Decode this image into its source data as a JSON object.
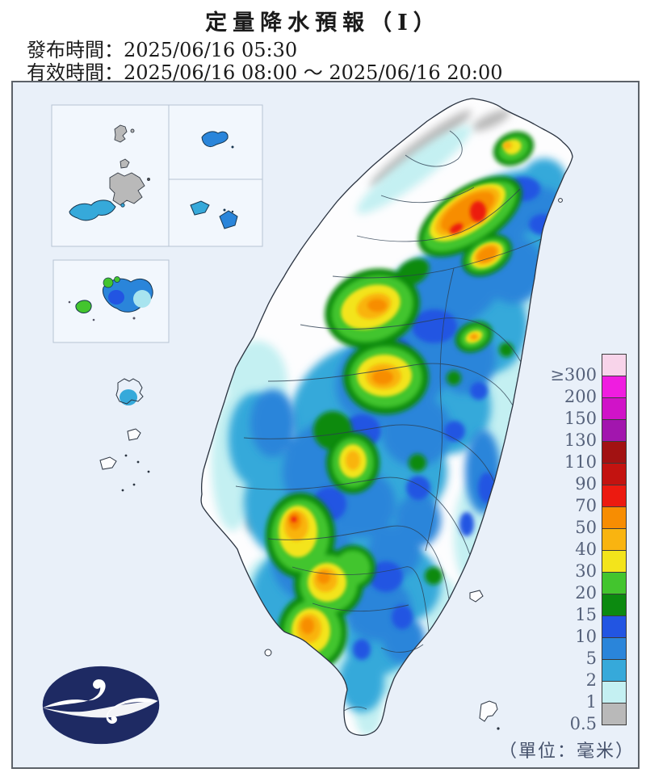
{
  "header": {
    "title": "定量降水預報（Ⅰ）",
    "issue_label": "發布時間：",
    "issue_value": "2025/06/16 05:30",
    "valid_label": "有效時間：",
    "valid_value": "2025/06/16 08:00 ～ 2025/06/16 20:00"
  },
  "legend": {
    "unit_note": "（單位：毫米）",
    "labels": [
      "≥300",
      "200",
      "150",
      "130",
      "110",
      "90",
      "70",
      "50",
      "40",
      "30",
      "20",
      "15",
      "10",
      "5",
      "2",
      "1",
      "0.5"
    ],
    "colors": [
      "#f8d4ea",
      "#ef1de0",
      "#d013c8",
      "#a216ae",
      "#a21212",
      "#c31310",
      "#ec1a10",
      "#f78d02",
      "#f9b410",
      "#f3e41b",
      "#43c52e",
      "#0c8a10",
      "#2255e2",
      "#2a85da",
      "#36a9da",
      "#c4f0f2",
      "#b9b9b9"
    ]
  },
  "map": {
    "sea_color": "#e9f0f9",
    "land_color": "#fdfdfe",
    "coast_color": "#2a3340"
  },
  "logo": {
    "color": "#1e2a63"
  }
}
